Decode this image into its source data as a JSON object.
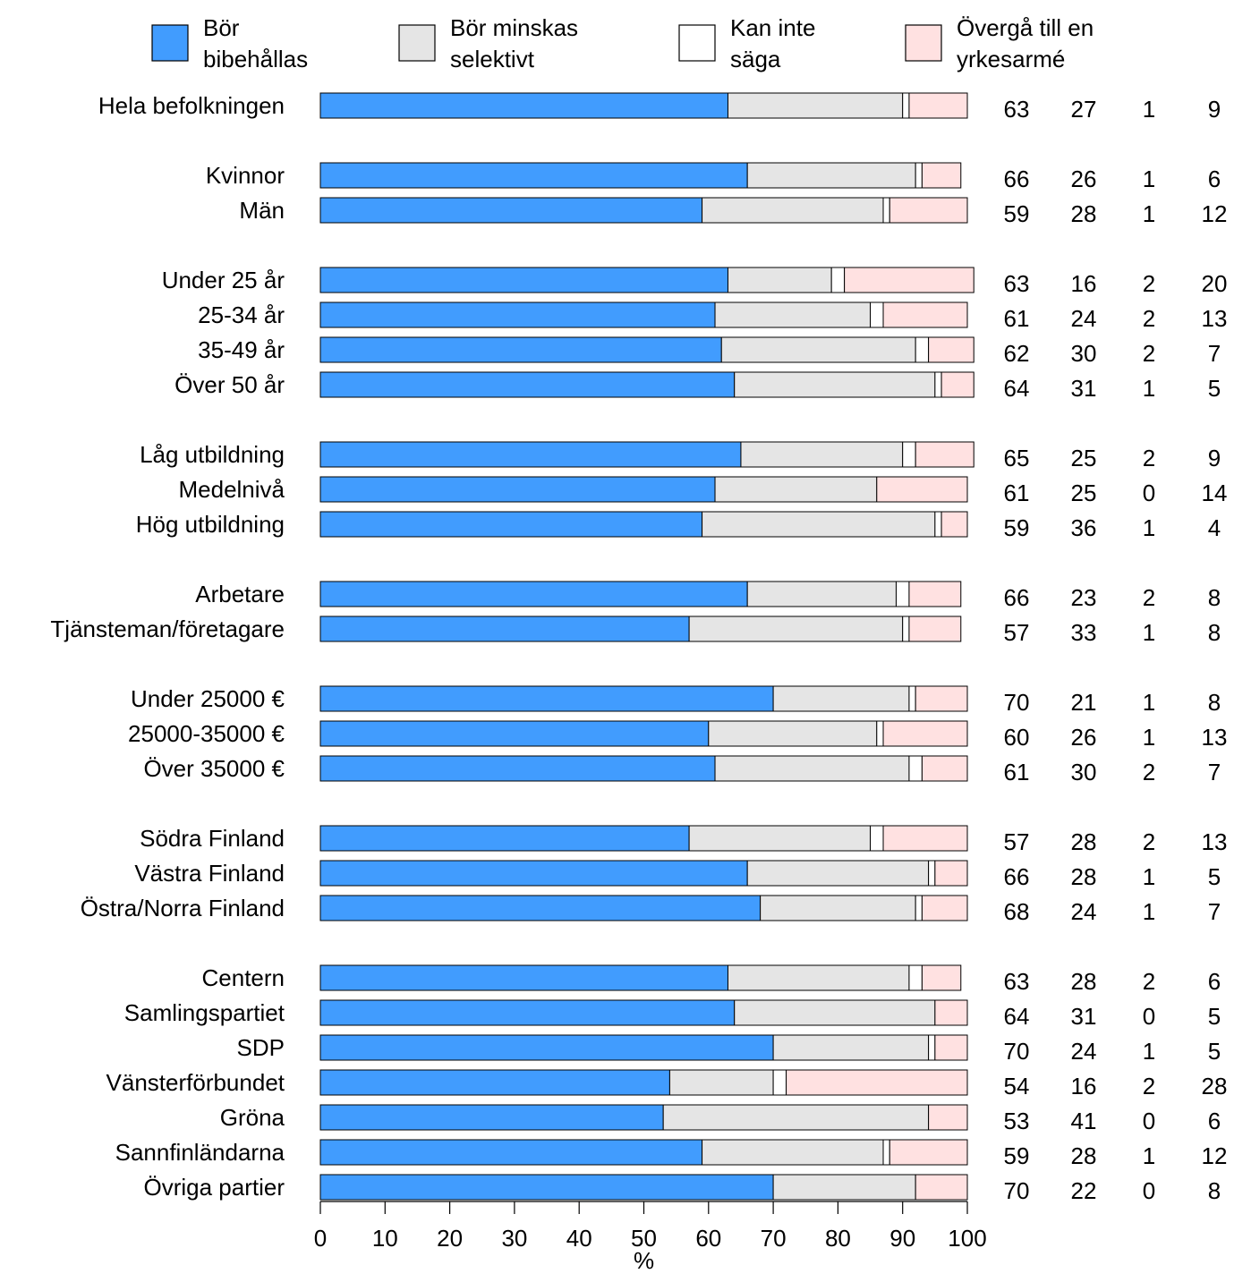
{
  "chart_data": {
    "type": "bar",
    "orientation": "horizontal",
    "stacked": true,
    "xlabel": "%",
    "xlim": [
      0,
      100
    ],
    "xticks": [
      0,
      10,
      20,
      30,
      40,
      50,
      60,
      70,
      80,
      90,
      100
    ],
    "legend_position": "top",
    "grid": false,
    "series": [
      {
        "name": "Bör bibehållas",
        "color": "#419cfe"
      },
      {
        "name": "Bör minskas selektivt",
        "color": "#e5e5e5"
      },
      {
        "name": "Kan inte säga",
        "color": "#ffffff"
      },
      {
        "name": "Övergå till en yrkesarmé",
        "color": "#ffe1e1"
      }
    ],
    "legend_labels": [
      [
        "Bör",
        "bibehållas"
      ],
      [
        "Bör minskas",
        "selektivt"
      ],
      [
        "Kan inte",
        "säga"
      ],
      [
        "Övergå till en",
        "yrkesarmé"
      ]
    ],
    "groups": [
      [
        {
          "label": "Hela befolkningen",
          "values": [
            63,
            27,
            1,
            9
          ]
        }
      ],
      [
        {
          "label": "Kvinnor",
          "values": [
            66,
            26,
            1,
            6
          ]
        },
        {
          "label": "Män",
          "values": [
            59,
            28,
            1,
            12
          ]
        }
      ],
      [
        {
          "label": "Under 25 år",
          "values": [
            63,
            16,
            2,
            20
          ]
        },
        {
          "label": "25-34 år",
          "values": [
            61,
            24,
            2,
            13
          ]
        },
        {
          "label": "35-49 år",
          "values": [
            62,
            30,
            2,
            7
          ]
        },
        {
          "label": "Över 50 år",
          "values": [
            64,
            31,
            1,
            5
          ]
        }
      ],
      [
        {
          "label": "Låg utbildning",
          "values": [
            65,
            25,
            2,
            9
          ]
        },
        {
          "label": "Medelnivå",
          "values": [
            61,
            25,
            0,
            14
          ]
        },
        {
          "label": "Hög utbildning",
          "values": [
            59,
            36,
            1,
            4
          ]
        }
      ],
      [
        {
          "label": "Arbetare",
          "values": [
            66,
            23,
            2,
            8
          ]
        },
        {
          "label": "Tjänsteman/företagare",
          "values": [
            57,
            33,
            1,
            8
          ]
        }
      ],
      [
        {
          "label": "Under 25000 €",
          "values": [
            70,
            21,
            1,
            8
          ]
        },
        {
          "label": "25000-35000 €",
          "values": [
            60,
            26,
            1,
            13
          ]
        },
        {
          "label": "Över 35000 €",
          "values": [
            61,
            30,
            2,
            7
          ]
        }
      ],
      [
        {
          "label": "Södra Finland",
          "values": [
            57,
            28,
            2,
            13
          ]
        },
        {
          "label": "Västra Finland",
          "values": [
            66,
            28,
            1,
            5
          ]
        },
        {
          "label": "Östra/Norra Finland",
          "values": [
            68,
            24,
            1,
            7
          ]
        }
      ],
      [
        {
          "label": "Centern",
          "values": [
            63,
            28,
            2,
            6
          ]
        },
        {
          "label": "Samlingspartiet",
          "values": [
            64,
            31,
            0,
            5
          ]
        },
        {
          "label": "SDP",
          "values": [
            70,
            24,
            1,
            5
          ]
        },
        {
          "label": "Vänsterförbundet",
          "values": [
            54,
            16,
            2,
            28
          ]
        },
        {
          "label": "Gröna",
          "values": [
            53,
            41,
            0,
            6
          ]
        },
        {
          "label": "Sannfinländarna",
          "values": [
            59,
            28,
            1,
            12
          ]
        },
        {
          "label": "Övriga partier",
          "values": [
            70,
            22,
            0,
            8
          ]
        }
      ]
    ]
  }
}
